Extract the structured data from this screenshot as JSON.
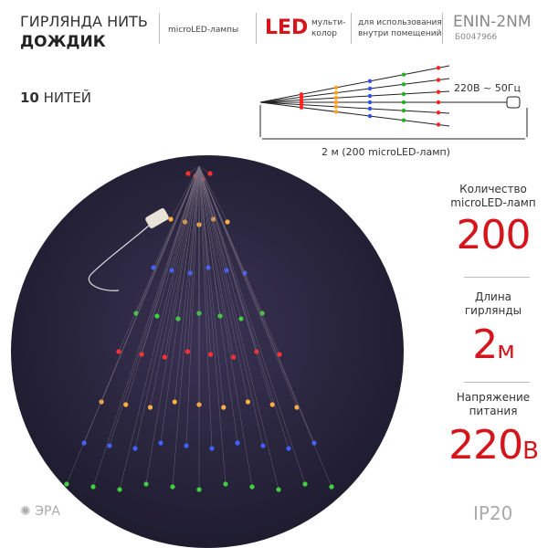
{
  "header": {
    "title_line1": "ГИРЛЯНДА НИТЬ",
    "title_line2": "ДОЖДИК",
    "lamp_type": "microLED-лампы",
    "led": "LED",
    "led_note_line1": "мульти-",
    "led_note_line2": "колор",
    "usage_line1": "для использования",
    "usage_line2": "внутри помещений",
    "model": "ENIN-2NM",
    "article": "Б0047966"
  },
  "strands": {
    "count": 10,
    "unit": "НИТЕЙ"
  },
  "scheme": {
    "power": "220В ~ 50Гц",
    "length": "2 м (200 microLED-ламп)"
  },
  "specs": [
    {
      "label_line1": "Количество",
      "label_line2": "microLED-ламп",
      "value": 200
    },
    {
      "label_line1": "Длина",
      "label_line2": "гирлянды",
      "value": 2,
      "unit": "м"
    },
    {
      "label_line1": "Напряжение",
      "label_line2": "питания",
      "value": 220,
      "unit": "В"
    }
  ],
  "footer": {
    "brand": "ЭРА",
    "protection": "IP20"
  }
}
